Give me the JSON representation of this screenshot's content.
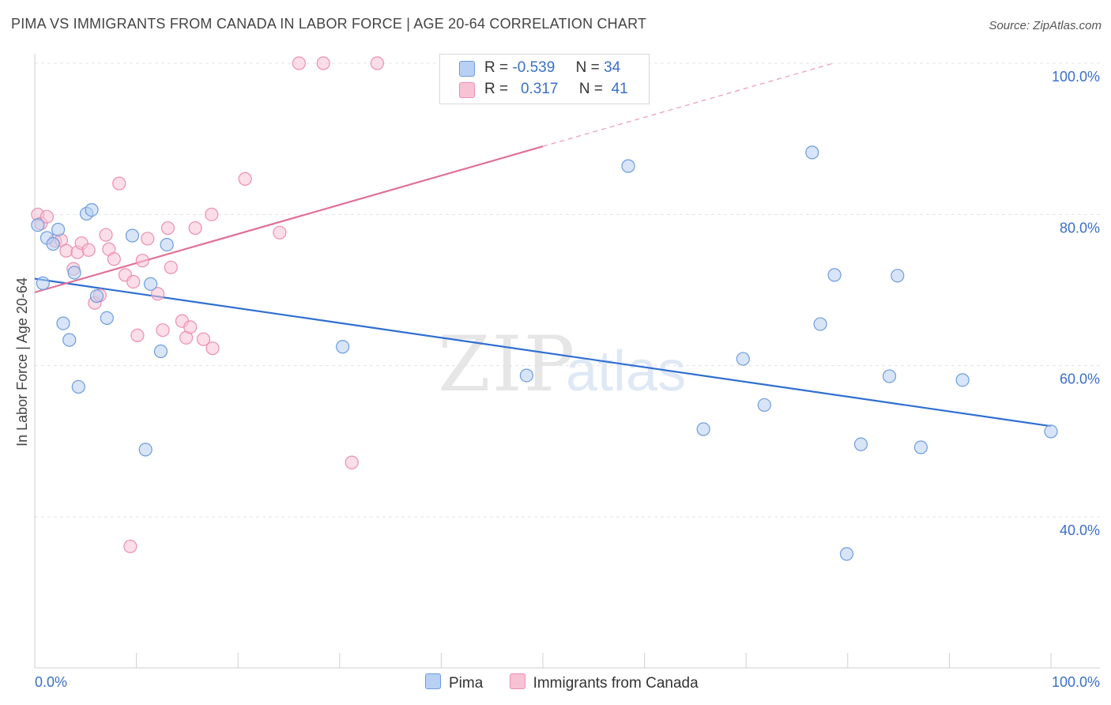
{
  "title": "PIMA VS IMMIGRANTS FROM CANADA IN LABOR FORCE | AGE 20-64 CORRELATION CHART",
  "source": "Source: ZipAtlas.com",
  "watermark": {
    "zip": "ZIP",
    "atlas": "atlas"
  },
  "legend": {
    "rows": [
      {
        "r_label": "R =",
        "r_value": "-0.539",
        "n_label": "N =",
        "n_value": "34"
      },
      {
        "r_label": "R =",
        "r_value": "0.317",
        "n_label": "N =",
        "n_value": "41"
      }
    ]
  },
  "chart_data": {
    "type": "scatter",
    "ylabel": "In Labor Force | Age 20-64",
    "x_tick_labels": [
      "0.0%",
      "100.0%"
    ],
    "y_tick_labels": [
      "100.0%",
      "80.0%",
      "60.0%",
      "40.0%"
    ],
    "xlim": [
      0,
      100
    ],
    "ylim": [
      20,
      102
    ],
    "grid": true,
    "legend_position": "bottom",
    "series": [
      {
        "name": "Pima",
        "color": "#6d9ce0",
        "fill": "#b8d0f3",
        "points": [
          [
            0.3,
            78.6
          ],
          [
            0.8,
            70.9
          ],
          [
            1.2,
            76.9
          ],
          [
            1.8,
            76.1
          ],
          [
            2.3,
            78.0
          ],
          [
            2.8,
            65.6
          ],
          [
            3.4,
            63.4
          ],
          [
            3.9,
            72.3
          ],
          [
            4.3,
            57.2
          ],
          [
            5.1,
            80.1
          ],
          [
            5.6,
            80.6
          ],
          [
            6.1,
            69.2
          ],
          [
            7.1,
            66.3
          ],
          [
            9.6,
            77.2
          ],
          [
            10.9,
            48.9
          ],
          [
            11.4,
            70.8
          ],
          [
            12.4,
            61.9
          ],
          [
            13.0,
            76.0
          ],
          [
            30.3,
            62.5
          ],
          [
            48.4,
            58.7
          ],
          [
            58.4,
            86.4
          ],
          [
            65.8,
            51.6
          ],
          [
            69.7,
            60.9
          ],
          [
            71.8,
            54.8
          ],
          [
            76.5,
            88.2
          ],
          [
            77.3,
            65.5
          ],
          [
            78.7,
            72.0
          ],
          [
            79.9,
            35.1
          ],
          [
            81.3,
            49.6
          ],
          [
            84.1,
            58.6
          ],
          [
            84.9,
            71.9
          ],
          [
            87.2,
            49.2
          ],
          [
            91.3,
            58.1
          ],
          [
            100.0,
            51.3
          ]
        ],
        "trend": {
          "x": [
            0,
            100
          ],
          "y": [
            71.5,
            52.0
          ]
        }
      },
      {
        "name": "Immigrants from Canada",
        "color": "#ec8fae",
        "fill": "#f7c2d3",
        "points": [
          [
            0.3,
            80.0
          ],
          [
            0.6,
            78.8
          ],
          [
            1.2,
            79.7
          ],
          [
            2.0,
            76.5
          ],
          [
            2.6,
            76.6
          ],
          [
            3.1,
            75.2
          ],
          [
            3.8,
            72.8
          ],
          [
            4.2,
            75.0
          ],
          [
            4.6,
            76.2
          ],
          [
            5.3,
            75.3
          ],
          [
            5.9,
            68.3
          ],
          [
            6.4,
            69.3
          ],
          [
            7.0,
            77.3
          ],
          [
            7.3,
            75.4
          ],
          [
            7.8,
            74.1
          ],
          [
            8.3,
            84.1
          ],
          [
            8.9,
            72.0
          ],
          [
            9.4,
            36.1
          ],
          [
            9.7,
            71.1
          ],
          [
            10.1,
            64.0
          ],
          [
            10.6,
            73.9
          ],
          [
            11.1,
            76.8
          ],
          [
            12.1,
            69.5
          ],
          [
            12.6,
            64.7
          ],
          [
            13.1,
            78.2
          ],
          [
            13.4,
            73.0
          ],
          [
            14.5,
            65.9
          ],
          [
            14.9,
            63.7
          ],
          [
            15.3,
            65.1
          ],
          [
            15.8,
            78.2
          ],
          [
            16.6,
            63.5
          ],
          [
            17.4,
            80.0
          ],
          [
            17.5,
            62.3
          ],
          [
            20.7,
            84.7
          ],
          [
            24.1,
            77.6
          ],
          [
            26.0,
            100.0
          ],
          [
            28.4,
            100.0
          ],
          [
            31.2,
            47.2
          ],
          [
            33.7,
            100.0
          ],
          [
            47.1,
            100.0
          ],
          [
            50.0,
            96.2
          ]
        ],
        "trend": {
          "x": [
            0,
            50
          ],
          "y": [
            69.7,
            89.0
          ]
        },
        "trend_dashed": {
          "x": [
            50,
            78.6
          ],
          "y": [
            89.0,
            100.0
          ]
        }
      }
    ]
  }
}
